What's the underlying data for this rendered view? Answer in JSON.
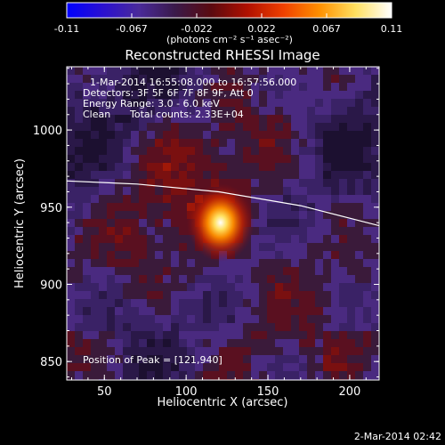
{
  "chart_data": {
    "type": "heatmap",
    "title": "Reconstructed RHESSI Image",
    "xlabel": "Heliocentric X (arcsec)",
    "ylabel": "Heliocentric Y (arcsec)",
    "xlim": [
      27,
      218
    ],
    "ylim": [
      838,
      1041
    ],
    "x_ticks": [
      50,
      100,
      150,
      200
    ],
    "y_ticks": [
      850,
      900,
      950,
      1000
    ],
    "colorbar": {
      "range": [
        -0.11,
        0.11
      ],
      "ticks": [
        "-0.11",
        "-0.067",
        "-0.022",
        "0.022",
        "0.067",
        "0.11"
      ],
      "units": "(photons cm⁻² s⁻¹ asec⁻²)",
      "stops": [
        "#0000ff",
        "#2a10d0",
        "#4a2a9a",
        "#3a1a4a",
        "#5a0a10",
        "#b01000",
        "#f04000",
        "#ff9000",
        "#ffe060",
        "#ffffff"
      ]
    },
    "annotations": {
      "time_range": "1-Mar-2014 16:55:08.000 to 16:57:56.000",
      "detectors": "Detectors: 3F 5F 6F 7F 8F 9F, Att 0",
      "energy": "Energy Range: 3.0 - 6.0 keV",
      "algorithm": "Clean",
      "counts": "Total counts: 2.33E+04",
      "peak": "Position of Peak = [121,940]"
    },
    "peak": {
      "x": 121,
      "y": 940
    },
    "limb": [
      [
        27,
        967
      ],
      [
        70,
        965
      ],
      [
        120,
        960
      ],
      [
        170,
        951
      ],
      [
        218,
        938
      ]
    ],
    "date_stamp": "2-Mar-2014 02:42"
  }
}
